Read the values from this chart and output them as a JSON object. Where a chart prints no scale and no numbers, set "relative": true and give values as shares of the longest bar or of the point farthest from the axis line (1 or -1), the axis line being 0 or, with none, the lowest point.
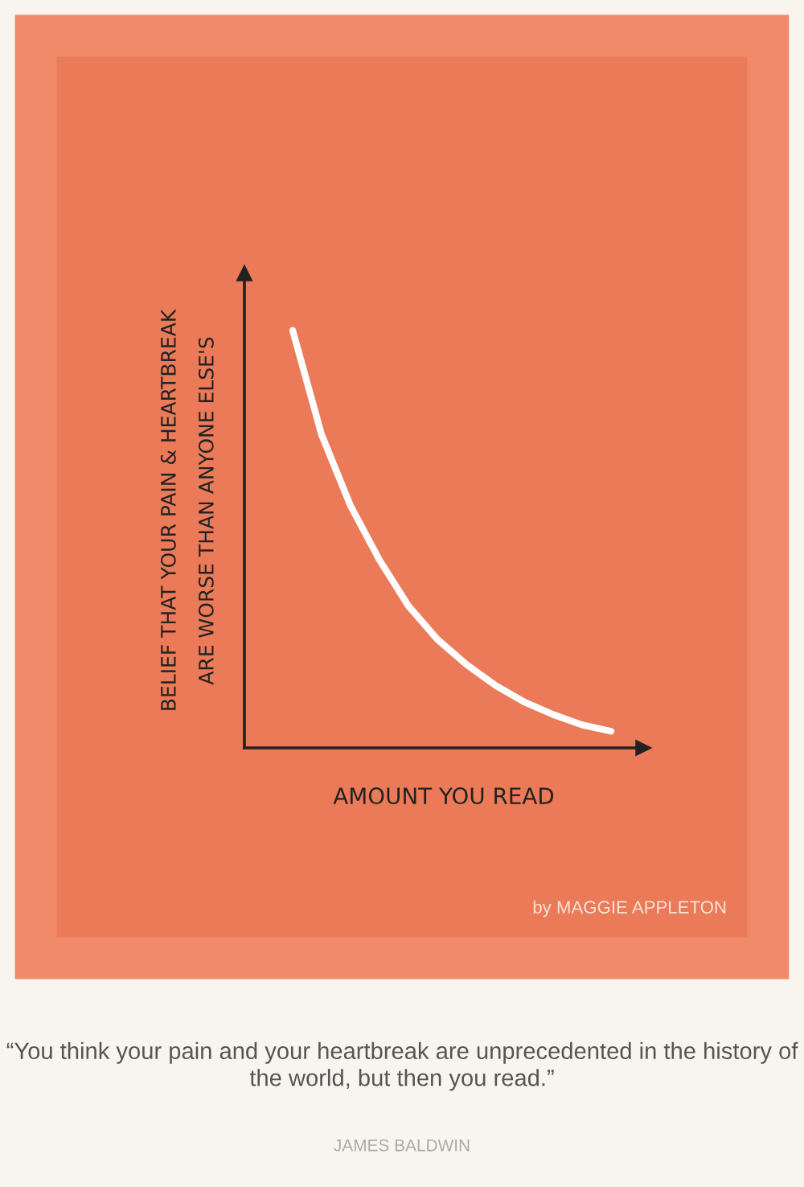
{
  "chart_data": {
    "type": "line",
    "relative": true,
    "ylabel": "BELIEF THAT YOUR PAIN & HEARTBREAK\nARE WORSE THAN ANYONE ELSE'S",
    "xlabel": "AMOUNT YOU READ",
    "categories": [
      null,
      null,
      null,
      null,
      null,
      null,
      null,
      null,
      null,
      null,
      null,
      null
    ],
    "series": [
      {
        "color": "#ffffff",
        "values": [
          1,
          0.75,
          0.58,
          0.45,
          0.34,
          0.26,
          0.2,
          0.15,
          0.11,
          0.08,
          0.055,
          0.04
        ]
      }
    ],
    "marker": "none",
    "line_style": "solid",
    "grid": false,
    "legend": false,
    "annotations": [
      "by MAGGIE APPLETON",
      "“You think your pain and your heartbreak are unprecedented in the history of the world, but then you read.”",
      "JAMES BALDWIN"
    ]
  }
}
